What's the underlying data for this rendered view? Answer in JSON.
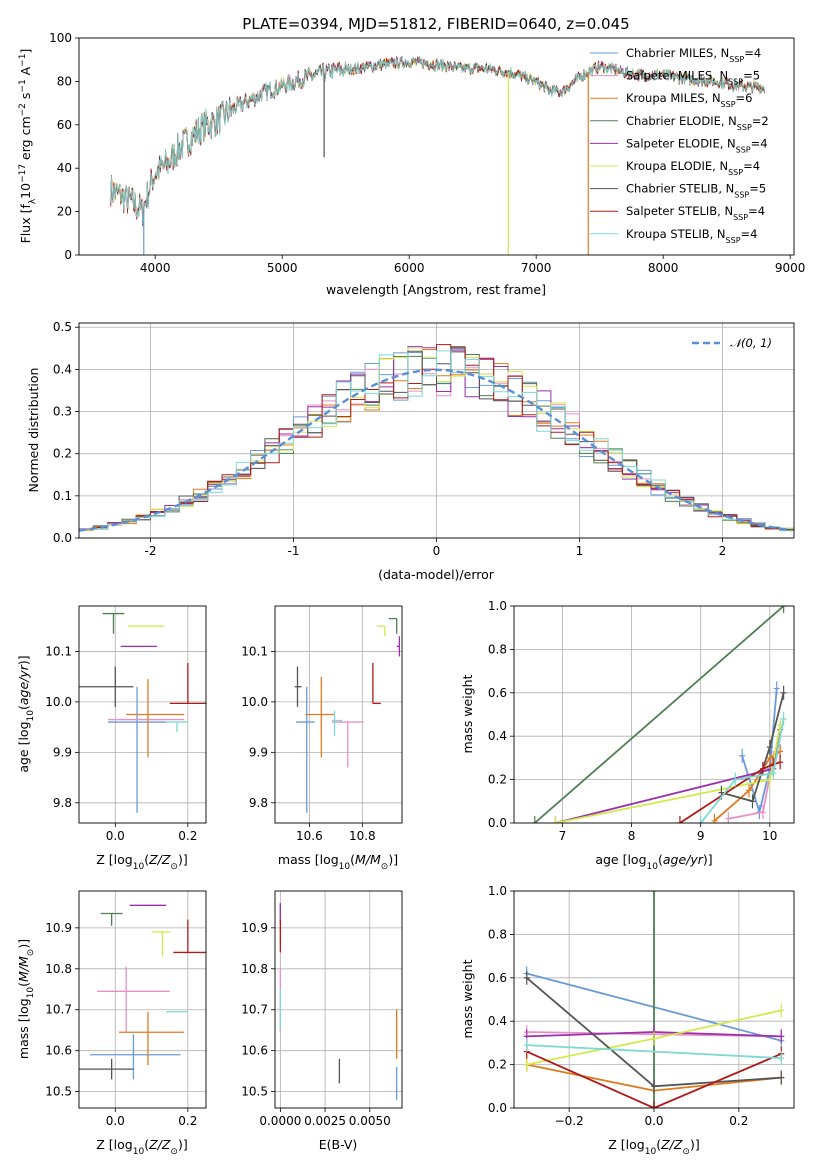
{
  "title": "PLATE=0394, MJD=51812, FIBERID=0640, z=0.045",
  "colors": {
    "Chabrier MILES": "#6a9bd8",
    "Salpeter MILES": "#e98fc6",
    "Kroupa MILES": "#e07b1f",
    "Chabrier ELODIE": "#4f7f53",
    "Salpeter ELODIE": "#9b2fae",
    "Kroupa ELODIE": "#d3ea4f",
    "Chabrier STELIB": "#555555",
    "Salpeter STELIB": "#b01a1a",
    "Kroupa STELIB": "#7dd9d3",
    "normal": "#5b8fd6"
  },
  "chart_data": [
    {
      "id": "spectrum",
      "type": "line",
      "title": "PLATE=0394, MJD=51812, FIBERID=0640, z=0.045",
      "xlabel": "wavelength [Angstrom, rest frame]",
      "ylabel": "Flux [f_λ 10^-17 erg cm^-2 s^-1 A^-1]",
      "xlim": [
        3400,
        9030
      ],
      "ylim": [
        0,
        100
      ],
      "xticks": [
        4000,
        5000,
        6000,
        7000,
        8000,
        9000
      ],
      "yticks": [
        0,
        20,
        40,
        60,
        80,
        100
      ],
      "legend": "top-right",
      "legend_entries": [
        {
          "name": "Chabrier MILES",
          "nssp": "4"
        },
        {
          "name": "Salpeter MILES",
          "nssp": "5"
        },
        {
          "name": "Kroupa MILES",
          "nssp": "6"
        },
        {
          "name": "Chabrier ELODIE",
          "nssp": "2"
        },
        {
          "name": "Salpeter ELODIE",
          "nssp": "4"
        },
        {
          "name": "Kroupa ELODIE",
          "nssp": "4"
        },
        {
          "name": "Chabrier STELIB",
          "nssp": "5"
        },
        {
          "name": "Salpeter STELIB",
          "nssp": "4"
        },
        {
          "name": "Kroupa STELIB",
          "nssp": "4"
        }
      ],
      "continuum": {
        "x": [
          3650,
          3800,
          3900,
          3950,
          4000,
          4100,
          4200,
          4300,
          4400,
          4500,
          4600,
          4700,
          4800,
          4900,
          5000,
          5200,
          5400,
          5600,
          5800,
          6000,
          6200,
          6400,
          6500,
          6600,
          6800,
          7000,
          7100,
          7200,
          7300,
          7400,
          7500,
          7600,
          7700,
          7800,
          8000,
          8200,
          8400,
          8600,
          8800
        ],
        "y": [
          30,
          25,
          20,
          30,
          38,
          42,
          50,
          55,
          60,
          62,
          67,
          70,
          73,
          76,
          78,
          82,
          85,
          86,
          88,
          89,
          88,
          86,
          86,
          86,
          84,
          80,
          76,
          75,
          80,
          84,
          87,
          86,
          84,
          83,
          83,
          81,
          80,
          78,
          77
        ]
      },
      "dropouts": [
        {
          "x": 3910,
          "y": 0
        },
        {
          "x": 6780,
          "y": 0
        },
        {
          "x": 7410,
          "y": 0
        },
        {
          "x": 5330,
          "y": 45
        }
      ]
    },
    {
      "id": "residuals",
      "type": "histogram",
      "xlabel": "(data-model)/error",
      "ylabel": "Normed distribution",
      "xlim": [
        -2.5,
        2.5
      ],
      "ylim": [
        0,
        0.51
      ],
      "xticks": [
        -2,
        -1,
        0,
        1,
        2
      ],
      "yticks": [
        0.0,
        0.1,
        0.2,
        0.3,
        0.4,
        0.5
      ],
      "legend": "top-right",
      "reference_label": "𝒩(0, 1)",
      "bin_width": 0.1
    },
    {
      "id": "age_vs_Z",
      "type": "errorbar",
      "xlabel": "Z [log10(Z/Z⊙)]",
      "ylabel": "age  [log10(age/yr)]",
      "xlim": [
        -0.1,
        0.25
      ],
      "ylim": [
        9.76,
        10.19
      ],
      "xticks": [
        0.0,
        0.2
      ],
      "yticks": [
        9.8,
        9.9,
        10.0,
        10.1
      ],
      "points": [
        {
          "model": "Chabrier MILES",
          "x": 0.06,
          "y": 9.96,
          "xerr": [
            0.08,
            0.08
          ],
          "yerr": [
            0.18,
            0.07
          ]
        },
        {
          "model": "Salpeter MILES",
          "x": 0.09,
          "y": 9.965,
          "xerr": [
            0.11,
            0.1
          ],
          "yerr": [
            0.0,
            0.0
          ]
        },
        {
          "model": "Kroupa MILES",
          "x": 0.09,
          "y": 9.975,
          "xerr": [
            0.06,
            0.1
          ],
          "yerr": [
            0.085,
            0.07
          ]
        },
        {
          "model": "Chabrier ELODIE",
          "x": -0.005,
          "y": 10.175,
          "xerr": [
            0.03,
            0.03
          ],
          "yerr": [
            0.04,
            0.0
          ]
        },
        {
          "model": "Salpeter ELODIE",
          "x": 0.065,
          "y": 10.11,
          "xerr": [
            0.05,
            0.05
          ],
          "yerr": [
            0.0,
            0.0
          ]
        },
        {
          "model": "Kroupa ELODIE",
          "x": 0.085,
          "y": 10.15,
          "xerr": [
            0.05,
            0.05
          ],
          "yerr": [
            0.0,
            0.0
          ]
        },
        {
          "model": "Chabrier STELIB",
          "x": 0.0,
          "y": 10.03,
          "xerr": [
            0.1,
            0.05
          ],
          "yerr": [
            0.04,
            0.04
          ]
        },
        {
          "model": "Salpeter STELIB",
          "x": 0.2,
          "y": 9.997,
          "xerr": [
            0.05,
            0.05
          ],
          "yerr": [
            0.0,
            0.08
          ]
        },
        {
          "model": "Kroupa STELIB",
          "x": 0.17,
          "y": 9.96,
          "xerr": [
            0.03,
            0.03
          ],
          "yerr": [
            0.02,
            0.0
          ]
        }
      ]
    },
    {
      "id": "age_vs_mass",
      "type": "errorbar",
      "xlabel": "mass [log10(M/M⊙)]",
      "ylabel": "",
      "xlim": [
        10.47,
        10.95
      ],
      "ylim": [
        9.76,
        10.19
      ],
      "xticks": [
        10.6,
        10.8
      ],
      "yticks": [
        9.8,
        9.9,
        10.0,
        10.1
      ],
      "points": [
        {
          "model": "Chabrier MILES",
          "x": 10.59,
          "y": 9.96,
          "xerr": [
            0.04,
            0.03
          ],
          "yerr": [
            0.18,
            0.07
          ]
        },
        {
          "model": "Salpeter MILES",
          "x": 10.745,
          "y": 9.96,
          "xerr": [
            0.06,
            0.06
          ],
          "yerr": [
            0.09,
            0.0
          ]
        },
        {
          "model": "Kroupa MILES",
          "x": 10.645,
          "y": 9.975,
          "xerr": [
            0.06,
            0.05
          ],
          "yerr": [
            0.085,
            0.075
          ]
        },
        {
          "model": "Chabrier ELODIE",
          "x": 10.93,
          "y": 10.165,
          "xerr": [
            0.03,
            0.0
          ],
          "yerr": [
            0.03,
            0.0
          ]
        },
        {
          "model": "Salpeter ELODIE",
          "x": 10.94,
          "y": 10.11,
          "xerr": [
            0.01,
            0.0
          ],
          "yerr": [
            0.02,
            0.02
          ]
        },
        {
          "model": "Kroupa ELODIE",
          "x": 10.885,
          "y": 10.15,
          "xerr": [
            0.03,
            0.0
          ],
          "yerr": [
            0.02,
            0.0
          ]
        },
        {
          "model": "Chabrier STELIB",
          "x": 10.555,
          "y": 10.03,
          "xerr": [
            0.01,
            0.015
          ],
          "yerr": [
            0.04,
            0.04
          ]
        },
        {
          "model": "Salpeter STELIB",
          "x": 10.84,
          "y": 9.997,
          "xerr": [
            0.0,
            0.03
          ],
          "yerr": [
            0.0,
            0.08
          ]
        },
        {
          "model": "Kroupa STELIB",
          "x": 10.695,
          "y": 9.963,
          "xerr": [
            0.01,
            0.03
          ],
          "yerr": [
            0.03,
            0.02
          ]
        }
      ]
    },
    {
      "id": "weight_vs_age",
      "type": "line",
      "xlabel": "age  [log10(age/yr)]",
      "ylabel": "mass weight",
      "xlim": [
        6.3,
        10.35
      ],
      "ylim": [
        0,
        1
      ],
      "xticks": [
        7,
        8,
        9,
        10
      ],
      "yticks": [
        0.0,
        0.2,
        0.4,
        0.6,
        0.8,
        1.0
      ],
      "series": [
        {
          "model": "Chabrier MILES",
          "x": [
            9.6,
            9.85,
            10.0,
            10.1
          ],
          "y": [
            0.31,
            0.05,
            0.25,
            0.62
          ]
        },
        {
          "model": "Salpeter MILES",
          "x": [
            9.4,
            9.9,
            10.05,
            10.15
          ],
          "y": [
            0.02,
            0.05,
            0.3,
            0.33
          ]
        },
        {
          "model": "Kroupa MILES",
          "x": [
            9.2,
            9.7,
            10.0,
            10.15
          ],
          "y": [
            0.01,
            0.15,
            0.3,
            0.33
          ]
        },
        {
          "model": "Chabrier ELODIE",
          "x": [
            6.6,
            10.2
          ],
          "y": [
            0.0,
            1.0
          ]
        },
        {
          "model": "Salpeter ELODIE",
          "x": [
            6.9,
            10.05,
            10.15
          ],
          "y": [
            0.0,
            0.25,
            0.43
          ]
        },
        {
          "model": "Kroupa ELODIE",
          "x": [
            6.9,
            10.0,
            10.15
          ],
          "y": [
            0.0,
            0.2,
            0.45
          ]
        },
        {
          "model": "Chabrier STELIB",
          "x": [
            9.3,
            9.75,
            10.0,
            10.2
          ],
          "y": [
            0.14,
            0.1,
            0.35,
            0.6
          ]
        },
        {
          "model": "Salpeter STELIB",
          "x": [
            8.7,
            9.9,
            10.05,
            10.15
          ],
          "y": [
            0.0,
            0.25,
            0.27,
            0.28
          ]
        },
        {
          "model": "Kroupa STELIB",
          "x": [
            9.0,
            9.5,
            10.05,
            10.2
          ],
          "y": [
            0.0,
            0.2,
            0.23,
            0.48
          ]
        }
      ]
    },
    {
      "id": "mass_vs_Z",
      "type": "errorbar",
      "xlabel": "Z [log10(Z/Z⊙)]",
      "ylabel": "mass [log10(M/M⊙)]",
      "xlim": [
        -0.1,
        0.25
      ],
      "ylim": [
        10.46,
        10.99
      ],
      "xticks": [
        0.0,
        0.2
      ],
      "yticks": [
        10.5,
        10.6,
        10.7,
        10.8,
        10.9
      ],
      "points": [
        {
          "model": "Chabrier MILES",
          "x": 0.05,
          "y": 10.59,
          "xerr": [
            0.12,
            0.13
          ],
          "yerr": [
            0.06,
            0.05
          ]
        },
        {
          "model": "Salpeter MILES",
          "x": 0.03,
          "y": 10.745,
          "xerr": [
            0.08,
            0.12
          ],
          "yerr": [
            0.1,
            0.06
          ]
        },
        {
          "model": "Kroupa MILES",
          "x": 0.09,
          "y": 10.645,
          "xerr": [
            0.08,
            0.1
          ],
          "yerr": [
            0.08,
            0.05
          ]
        },
        {
          "model": "Chabrier ELODIE",
          "x": -0.01,
          "y": 10.935,
          "xerr": [
            0.03,
            0.03
          ],
          "yerr": [
            0.03,
            0.0
          ]
        },
        {
          "model": "Salpeter ELODIE",
          "x": 0.09,
          "y": 10.955,
          "xerr": [
            0.05,
            0.05
          ],
          "yerr": [
            0.0,
            0.0
          ]
        },
        {
          "model": "Kroupa ELODIE",
          "x": 0.13,
          "y": 10.89,
          "xerr": [
            0.03,
            0.02
          ],
          "yerr": [
            0.06,
            0.0
          ]
        },
        {
          "model": "Chabrier STELIB",
          "x": -0.01,
          "y": 10.555,
          "xerr": [
            0.09,
            0.06
          ],
          "yerr": [
            0.025,
            0.025
          ]
        },
        {
          "model": "Salpeter STELIB",
          "x": 0.2,
          "y": 10.84,
          "xerr": [
            0.04,
            0.05
          ],
          "yerr": [
            0.0,
            0.08
          ]
        },
        {
          "model": "Kroupa STELIB",
          "x": 0.17,
          "y": 10.695,
          "xerr": [
            0.03,
            0.03
          ],
          "yerr": [
            0.0,
            0.0
          ]
        }
      ]
    },
    {
      "id": "mass_vs_EBV",
      "type": "errorbar",
      "xlabel": "E(B-V)",
      "ylabel": "",
      "xlim": [
        -0.0003,
        0.0068
      ],
      "ylim": [
        10.46,
        10.99
      ],
      "xticks": [
        0.0,
        0.0025,
        0.005
      ],
      "xticklabels": [
        "0.0000",
        "0.0025",
        "0.0050"
      ],
      "yticks": [
        10.5,
        10.6,
        10.7,
        10.8,
        10.9
      ],
      "points": [
        {
          "model": "Chabrier MILES",
          "x": 0.0065,
          "y": 10.52,
          "xerr": [
            0,
            0
          ],
          "yerr": [
            0.04,
            0.04
          ]
        },
        {
          "model": "Salpeter MILES",
          "x": 0.0,
          "y": 10.745,
          "xerr": [
            0,
            0
          ],
          "yerr": [
            0.1,
            0.06
          ]
        },
        {
          "model": "Kroupa MILES",
          "x": 0.0065,
          "y": 10.64,
          "xerr": [
            0,
            0
          ],
          "yerr": [
            0.06,
            0.06
          ]
        },
        {
          "model": "Chabrier ELODIE",
          "x": 0.0,
          "y": 10.94,
          "xerr": [
            0,
            0
          ],
          "yerr": [
            0.02,
            0.02
          ]
        },
        {
          "model": "Salpeter ELODIE",
          "x": 0.0,
          "y": 10.92,
          "xerr": [
            0,
            0
          ],
          "yerr": [
            0.03,
            0.04
          ]
        },
        {
          "model": "Kroupa ELODIE",
          "x": 0.0,
          "y": 10.89,
          "xerr": [
            0,
            0
          ],
          "yerr": [
            0.03,
            0.03
          ]
        },
        {
          "model": "Chabrier STELIB",
          "x": 0.0033,
          "y": 10.55,
          "xerr": [
            0,
            0
          ],
          "yerr": [
            0.03,
            0.03
          ]
        },
        {
          "model": "Salpeter STELIB",
          "x": 0.0,
          "y": 10.88,
          "xerr": [
            0,
            0
          ],
          "yerr": [
            0.04,
            0.04
          ]
        },
        {
          "model": "Kroupa STELIB",
          "x": 0.0,
          "y": 10.7,
          "xerr": [
            0,
            0
          ],
          "yerr": [
            0.05,
            0.05
          ]
        }
      ]
    },
    {
      "id": "weight_vs_Z",
      "type": "line",
      "xlabel": "Z [log10(Z/Z⊙)]",
      "ylabel": "mass weight",
      "xlim": [
        -0.33,
        0.33
      ],
      "ylim": [
        0,
        1
      ],
      "xticks": [
        -0.2,
        0.0,
        0.2
      ],
      "yticks": [
        0.0,
        0.2,
        0.4,
        0.6,
        0.8,
        1.0
      ],
      "series": [
        {
          "model": "Chabrier MILES",
          "x": [
            -0.3,
            0.3
          ],
          "y": [
            0.62,
            0.31
          ]
        },
        {
          "model": "Salpeter MILES",
          "x": [
            -0.3,
            0.0,
            0.3
          ],
          "y": [
            0.35,
            0.34,
            0.33
          ]
        },
        {
          "model": "Kroupa MILES",
          "x": [
            -0.3,
            0.0,
            0.3
          ],
          "y": [
            0.2,
            0.08,
            0.14
          ]
        },
        {
          "model": "Chabrier ELODIE",
          "x": [
            0.0,
            0.0
          ],
          "y": [
            0.0,
            1.0
          ]
        },
        {
          "model": "Salpeter ELODIE",
          "x": [
            -0.3,
            0.0,
            0.3
          ],
          "y": [
            0.33,
            0.35,
            0.33
          ]
        },
        {
          "model": "Kroupa ELODIE",
          "x": [
            -0.3,
            0.0,
            0.3
          ],
          "y": [
            0.2,
            0.32,
            0.45
          ]
        },
        {
          "model": "Chabrier STELIB",
          "x": [
            -0.3,
            0.0,
            0.3
          ],
          "y": [
            0.6,
            0.1,
            0.14
          ]
        },
        {
          "model": "Salpeter STELIB",
          "x": [
            -0.3,
            0.0,
            0.3
          ],
          "y": [
            0.26,
            0.0,
            0.25
          ]
        },
        {
          "model": "Kroupa STELIB",
          "x": [
            -0.3,
            0.3
          ],
          "y": [
            0.29,
            0.23
          ]
        }
      ]
    }
  ]
}
